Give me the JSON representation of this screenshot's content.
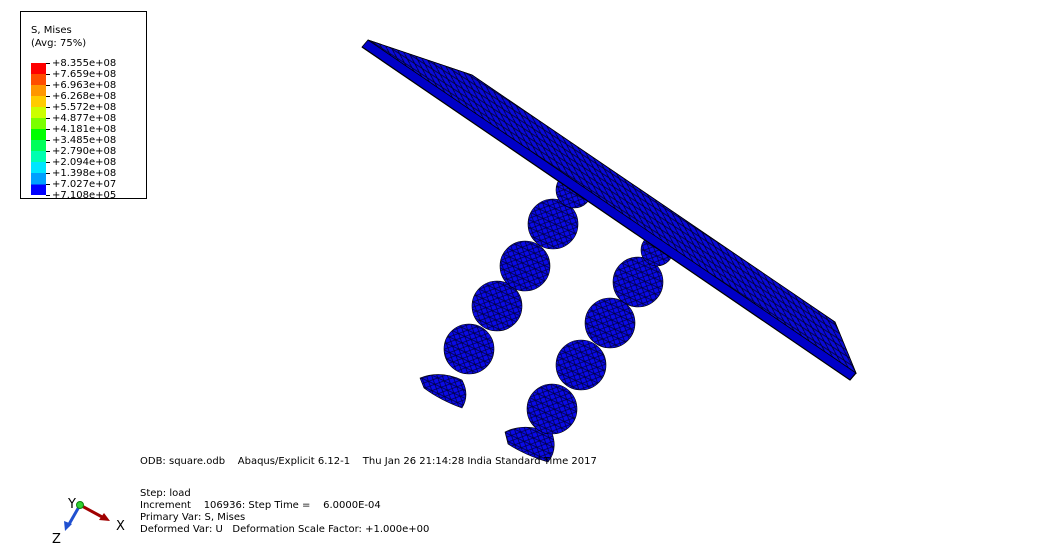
{
  "legend": {
    "title_line1": "S, Mises",
    "title_line2": "(Avg: 75%)",
    "levels": [
      {
        "value": "+8.355e+08",
        "color": "#ff0000"
      },
      {
        "value": "+7.659e+08",
        "color": "#ff4d00"
      },
      {
        "value": "+6.963e+08",
        "color": "#ff9600"
      },
      {
        "value": "+6.268e+08",
        "color": "#ffcc00"
      },
      {
        "value": "+5.572e+08",
        "color": "#ccff00"
      },
      {
        "value": "+4.877e+08",
        "color": "#7bff00"
      },
      {
        "value": "+4.181e+08",
        "color": "#00ff00"
      },
      {
        "value": "+3.485e+08",
        "color": "#00ff5a"
      },
      {
        "value": "+2.790e+08",
        "color": "#00ffb0"
      },
      {
        "value": "+2.094e+08",
        "color": "#00e6ff"
      },
      {
        "value": "+1.398e+08",
        "color": "#00a0ff"
      },
      {
        "value": "+7.027e+07",
        "color": "#0050ff"
      },
      {
        "value": "+7.108e+05",
        "color": "#0000ff"
      }
    ]
  },
  "info": {
    "odb_line": "ODB: square.odb    Abaqus/Explicit 6.12-1    Thu Jan 26 21:14:28 India Standard Time 2017",
    "step_line": "Step: load",
    "increment_line": "Increment    106936: Step Time =    6.0000E-04",
    "primary_line": "Primary Var: S, Mises",
    "deformed_line": "Deformed Var: U   Deformation Scale Factor: +1.000e+00"
  },
  "triad": {
    "x": "X",
    "y": "Y",
    "z": "Z"
  },
  "colors": {
    "mesh": "#0000ff",
    "edge": "#000033"
  }
}
